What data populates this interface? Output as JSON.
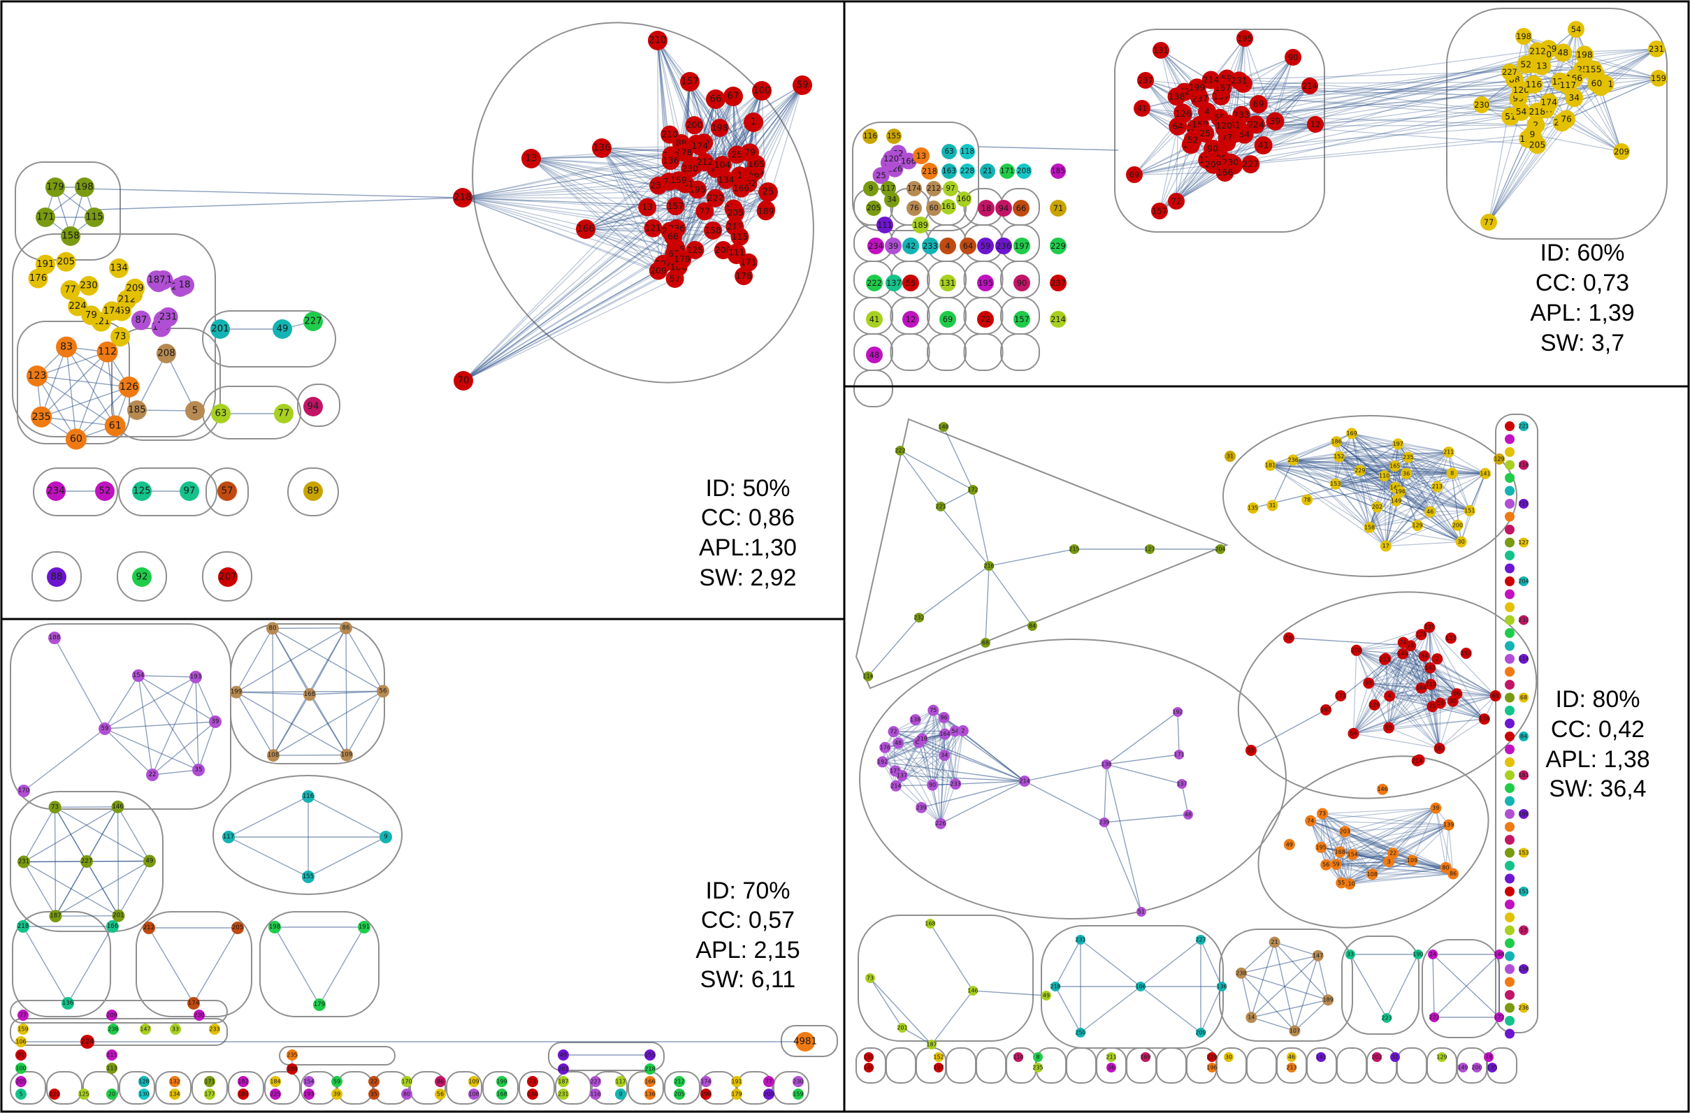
{
  "panels": [
    {
      "id": "p50",
      "stats": [
        "ID: 50%",
        "CC: 0,86",
        "APL:1,30",
        "SW: 2,92"
      ],
      "labels": [
        "52",
        "125",
        "97",
        "57",
        "89",
        "88",
        "92",
        "207",
        "195",
        "178",
        "216",
        "239",
        "166",
        "233",
        "165",
        "196",
        "104",
        "208",
        "223",
        "192",
        "200",
        "212",
        "238",
        "236",
        "222",
        "225",
        "210",
        "157",
        "66",
        "67",
        "100",
        "59",
        "1",
        "25",
        "136",
        "13",
        "166",
        "218",
        "70",
        "179",
        "198",
        "171",
        "115",
        "158",
        "191",
        "161",
        "121",
        "176",
        "224",
        "79",
        "212",
        "205",
        "77",
        "159",
        "174",
        "230",
        "134",
        "209",
        "111",
        "189",
        "228",
        "21",
        "18",
        "87",
        "146",
        "187",
        "231",
        "73",
        "201",
        "49",
        "227",
        "83",
        "112",
        "126",
        "61",
        "60",
        "235",
        "123",
        "208",
        "185",
        "5",
        "63",
        "77",
        "94",
        "234"
      ]
    },
    {
      "id": "p60",
      "stats": [
        "ID: 60%",
        "CC: 0,73",
        "APL: 1,39",
        "SW: 3,7"
      ],
      "labels": [
        "39",
        "42",
        "233",
        "4",
        "64",
        "59",
        "236",
        "197",
        "229",
        "222",
        "137",
        "55",
        "131",
        "195",
        "90",
        "237",
        "41",
        "12",
        "69",
        "72",
        "157",
        "214",
        "48",
        "51",
        "203",
        "138",
        "2",
        "99",
        "88",
        "224",
        "199",
        "198",
        "54",
        "231",
        "227",
        "159",
        "230",
        "77",
        "209",
        "126",
        "61",
        "52",
        "120",
        "25",
        "166",
        "13",
        "218",
        "116",
        "155",
        "9",
        "117",
        "205",
        "34",
        "174",
        "212",
        "76",
        "60",
        "161",
        "97",
        "160",
        "63",
        "118",
        "163",
        "228",
        "21",
        "171",
        "208",
        "185",
        "18",
        "94",
        "66",
        "71",
        "111",
        "189",
        "234"
      ]
    },
    {
      "id": "p70",
      "stats": [
        "ID: 70%",
        "CC: 0,57",
        "APL: 2,15",
        "SW: 6,11"
      ],
      "labels": [
        "188",
        "154",
        "193",
        "59",
        "39",
        "22",
        "35",
        "170",
        "80",
        "86",
        "56",
        "109",
        "108",
        "199",
        "168",
        "73",
        "146",
        "49",
        "201",
        "187",
        "231",
        "227",
        "116",
        "117",
        "9",
        "155",
        "218",
        "166",
        "136",
        "212",
        "205",
        "174",
        "198",
        "191",
        "179",
        "77",
        "209",
        "230",
        "159",
        "238",
        "147",
        "33",
        "233",
        "4981",
        "224",
        "106",
        "92",
        "100",
        "205",
        "5",
        "111",
        "113",
        "121",
        "125",
        "20",
        "128",
        "130",
        "132",
        "134",
        "171",
        "177",
        "182",
        "183",
        "184",
        "225",
        "235"
      ]
    },
    {
      "id": "p80",
      "stats": [
        "ID: 80%",
        "CC: 0,42",
        "APL: 1,38",
        "SW: 36,4"
      ],
      "labels": [
        "148",
        "222",
        "172",
        "221",
        "216",
        "215",
        "127",
        "204",
        "232",
        "114",
        "68",
        "84",
        "181",
        "186",
        "153",
        "151",
        "17",
        "158",
        "236",
        "165",
        "140",
        "152",
        "197",
        "110",
        "8",
        "235",
        "211",
        "169",
        "36",
        "229",
        "30",
        "196",
        "46",
        "141",
        "213",
        "202",
        "31",
        "129",
        "78",
        "149",
        "200",
        "135",
        "74",
        "142",
        "178",
        "52",
        "93",
        "4",
        "58",
        "95",
        "167",
        "75",
        "65",
        "219",
        "34",
        "54",
        "164",
        "96",
        "233",
        "90",
        "176",
        "72",
        "2",
        "226",
        "214",
        "192",
        "171",
        "137",
        "138",
        "239",
        "48",
        "51",
        "139",
        "110",
        "74",
        "203",
        "3",
        "55",
        "39",
        "59",
        "154",
        "22",
        "195",
        "80",
        "56",
        "86",
        "108",
        "109",
        "168",
        "73",
        "146",
        "49",
        "201",
        "187",
        "231",
        "227",
        "218",
        "166",
        "136",
        "250",
        "209",
        "189",
        "107",
        "14",
        "238",
        "21",
        "147",
        "33",
        "190",
        "223",
        "24"
      ]
    }
  ]
}
